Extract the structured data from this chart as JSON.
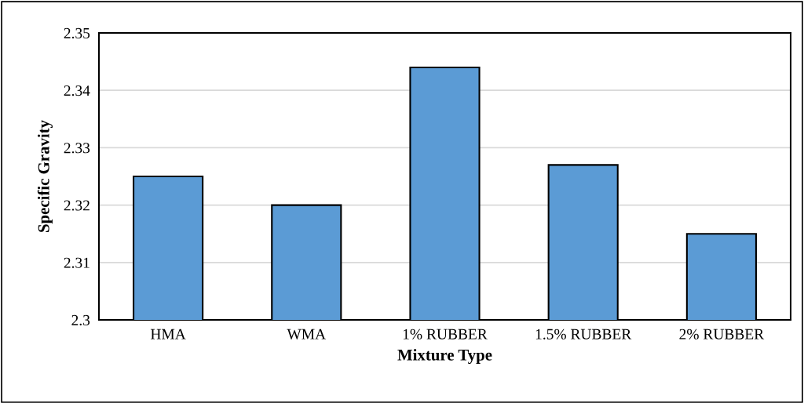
{
  "chart_data": {
    "type": "bar",
    "xlabel": "Mixture Type",
    "ylabel": "Specific Gravity",
    "categories": [
      "HMA",
      "WMA",
      "1% RUBBER",
      "1.5% RUBBER",
      "2% RUBBER"
    ],
    "values": [
      2.325,
      2.32,
      2.344,
      2.327,
      2.315
    ],
    "color": "#5b9bd5",
    "ylim": [
      2.3,
      2.35
    ],
    "yticks": [
      {
        "value": 2.3,
        "label": "2.3"
      },
      2.31,
      2.32,
      2.33,
      2.34,
      2.35
    ],
    "grid": "y"
  }
}
